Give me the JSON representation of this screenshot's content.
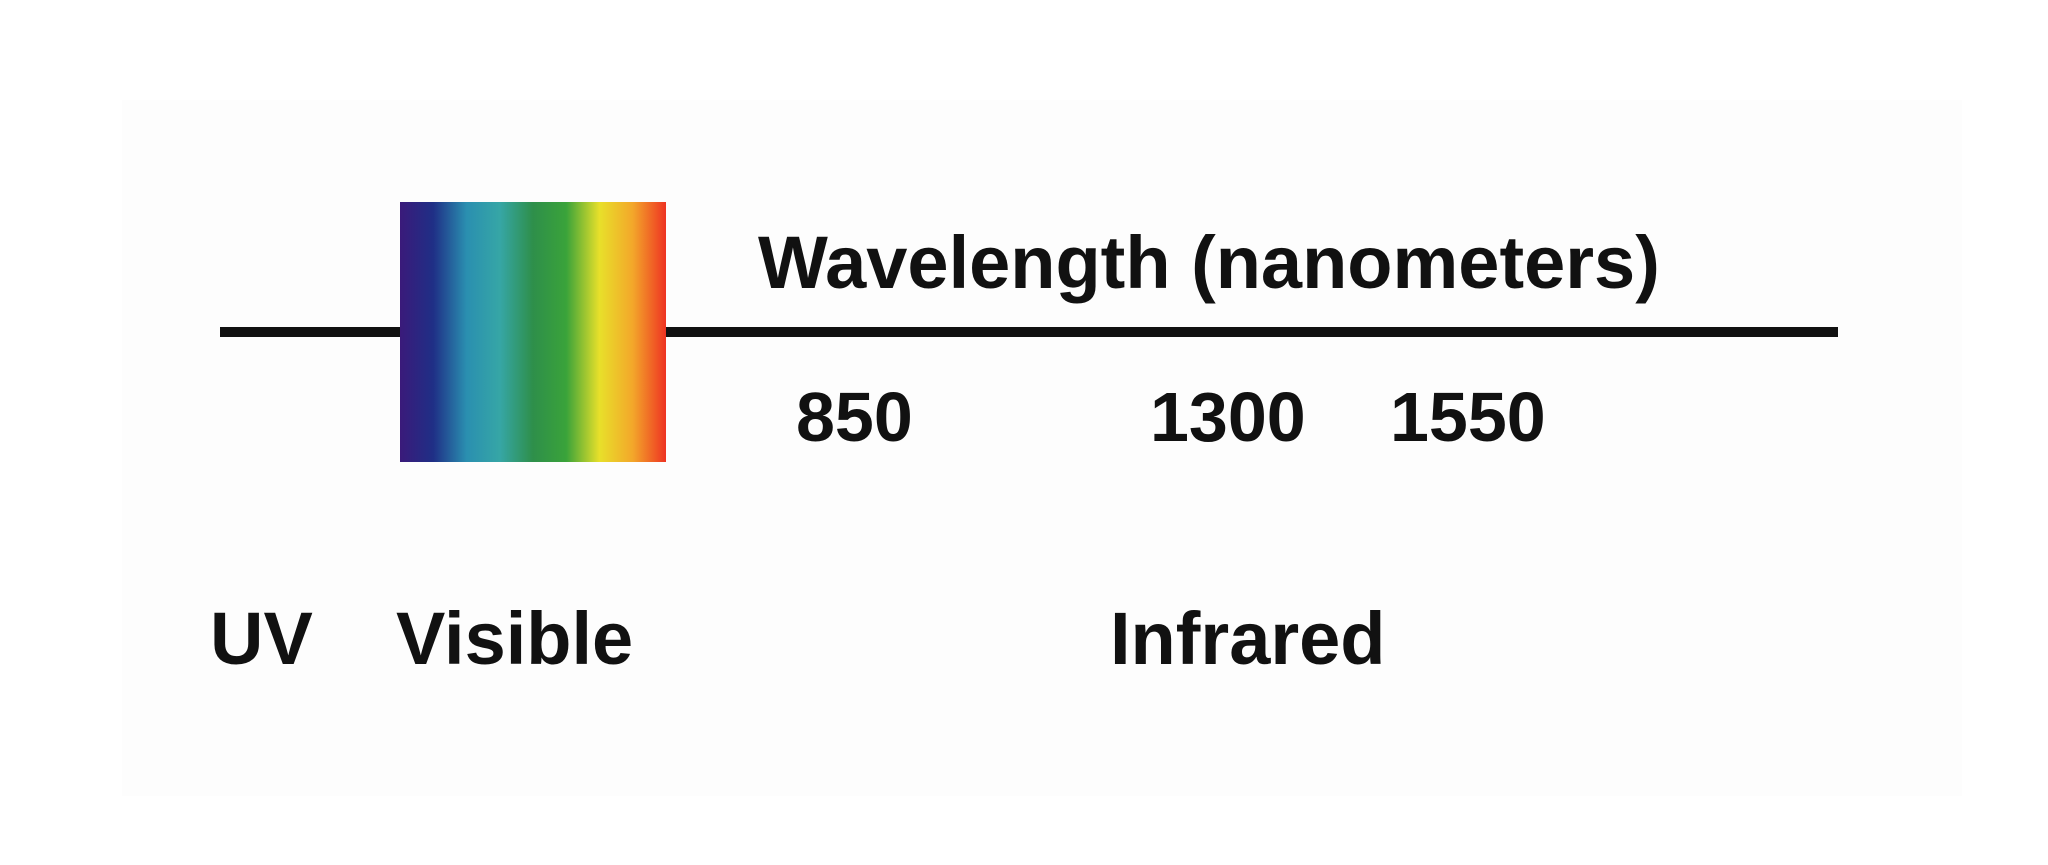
{
  "diagram": {
    "axis_title": "Wavelength (nanometers)",
    "ticks": [
      "850",
      "1300",
      "1550"
    ],
    "regions": {
      "uv": "UV",
      "visible": "Visible",
      "infrared": "Infrared"
    },
    "spectrum_colors": [
      "#3a1a7a",
      "#1f2f86",
      "#2a8fb0",
      "#36a6a6",
      "#2e8f4a",
      "#3aa33a",
      "#e8e02a",
      "#f3a72a",
      "#ee3322"
    ]
  }
}
